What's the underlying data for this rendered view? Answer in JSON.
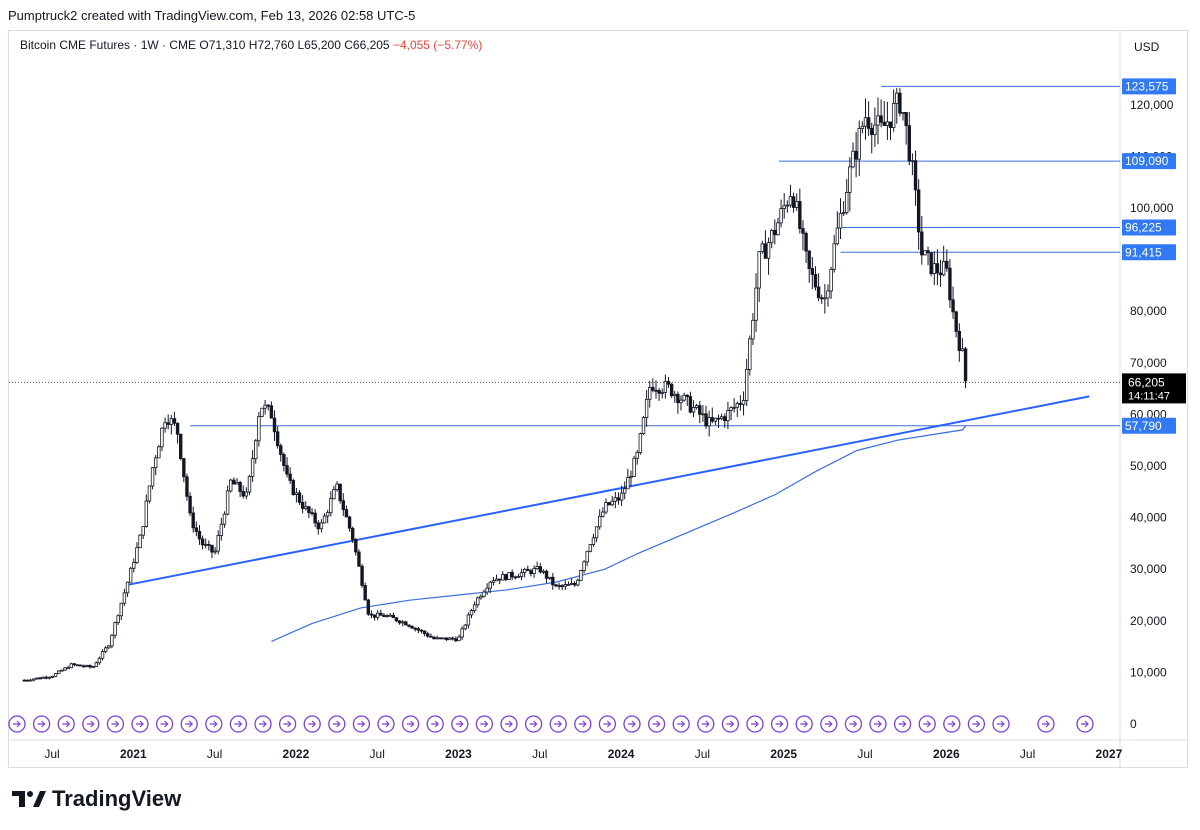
{
  "header": {
    "caption": "Pumptruck2 created with TradingView.com, Feb 13, 2026 02:58 UTC-5"
  },
  "legend": {
    "symbol": "Bitcoin CME Futures · 1W · CME",
    "open_label": "O",
    "open": "71,310",
    "high_label": "H",
    "high": "72,760",
    "low_label": "L",
    "low": "65,200",
    "close_label": "C",
    "close": "66,205",
    "change": "−4,055 (−5.77%)"
  },
  "axis": {
    "currency": "USD"
  },
  "footer": {
    "brand": "TradingView"
  },
  "colors": {
    "accent": "#2962ff",
    "level_label_bg": "#3179f5",
    "price_label_bg": "#000000",
    "candle": "#131722",
    "ma_line": "#3b6fe0"
  },
  "chart_data": {
    "type": "candlestick",
    "y_axis": {
      "ticks": [
        0,
        10000,
        20000,
        30000,
        40000,
        50000,
        60000,
        70000,
        80000,
        90000,
        100000,
        110000,
        120000
      ],
      "tick_labels": [
        "0",
        "10,000",
        "20,000",
        "30,000",
        "40,000",
        "50,000",
        "60,000",
        "70,000",
        "80,000",
        "",
        "100,000",
        "110,000",
        "120,000"
      ]
    },
    "x_axis": {
      "ticks": [
        {
          "label": "Jul",
          "x": 2020.5
        },
        {
          "label": "2021",
          "x": 2021.0
        },
        {
          "label": "Jul",
          "x": 2021.5
        },
        {
          "label": "2022",
          "x": 2022.0
        },
        {
          "label": "Jul",
          "x": 2022.5
        },
        {
          "label": "2023",
          "x": 2023.0
        },
        {
          "label": "Jul",
          "x": 2023.5
        },
        {
          "label": "2024",
          "x": 2024.0
        },
        {
          "label": "Jul",
          "x": 2024.5
        },
        {
          "label": "2025",
          "x": 2025.0
        },
        {
          "label": "Jul",
          "x": 2025.5
        },
        {
          "label": "2026",
          "x": 2026.0
        },
        {
          "label": "Jul",
          "x": 2026.5
        },
        {
          "label": "2027",
          "x": 2027.0
        }
      ]
    },
    "price_path": [
      [
        2020.33,
        8500
      ],
      [
        2020.5,
        9300
      ],
      [
        2020.62,
        11500
      ],
      [
        2020.75,
        11000
      ],
      [
        2020.85,
        15500
      ],
      [
        2020.96,
        27000
      ],
      [
        2021.05,
        37000
      ],
      [
        2021.12,
        50000
      ],
      [
        2021.2,
        60000
      ],
      [
        2021.27,
        57000
      ],
      [
        2021.35,
        40000
      ],
      [
        2021.42,
        35000
      ],
      [
        2021.5,
        33000
      ],
      [
        2021.6,
        47000
      ],
      [
        2021.7,
        44000
      ],
      [
        2021.78,
        62000
      ],
      [
        2021.85,
        60000
      ],
      [
        2021.95,
        47000
      ],
      [
        2022.05,
        42000
      ],
      [
        2022.15,
        38000
      ],
      [
        2022.25,
        46000
      ],
      [
        2022.35,
        36000
      ],
      [
        2022.45,
        21000
      ],
      [
        2022.55,
        21000
      ],
      [
        2022.68,
        19500
      ],
      [
        2022.85,
        16500
      ],
      [
        2023.0,
        16500
      ],
      [
        2023.1,
        23500
      ],
      [
        2023.2,
        28000
      ],
      [
        2023.35,
        29000
      ],
      [
        2023.5,
        30000
      ],
      [
        2023.6,
        26500
      ],
      [
        2023.72,
        27000
      ],
      [
        2023.8,
        34500
      ],
      [
        2023.9,
        42000
      ],
      [
        2024.0,
        44000
      ],
      [
        2024.1,
        52000
      ],
      [
        2024.18,
        66000
      ],
      [
        2024.3,
        65000
      ],
      [
        2024.45,
        61000
      ],
      [
        2024.55,
        58000
      ],
      [
        2024.65,
        60000
      ],
      [
        2024.75,
        63000
      ],
      [
        2024.85,
        90000
      ],
      [
        2024.95,
        96000
      ],
      [
        2025.05,
        104000
      ],
      [
        2025.15,
        88000
      ],
      [
        2025.25,
        82000
      ],
      [
        2025.32,
        94000
      ],
      [
        2025.4,
        106000
      ],
      [
        2025.5,
        118000
      ],
      [
        2025.6,
        115000
      ],
      [
        2025.72,
        121000
      ],
      [
        2025.78,
        110000
      ],
      [
        2025.85,
        91000
      ],
      [
        2025.93,
        88000
      ],
      [
        2026.0,
        88000
      ],
      [
        2026.05,
        78000
      ],
      [
        2026.1,
        71310
      ],
      [
        2026.12,
        66205
      ]
    ],
    "moving_average": [
      [
        2021.85,
        16000
      ],
      [
        2022.1,
        19500
      ],
      [
        2022.4,
        22500
      ],
      [
        2022.7,
        24000
      ],
      [
        2023.0,
        25000
      ],
      [
        2023.3,
        26000
      ],
      [
        2023.6,
        27500
      ],
      [
        2023.9,
        30000
      ],
      [
        2024.1,
        33000
      ],
      [
        2024.4,
        37000
      ],
      [
        2024.7,
        41000
      ],
      [
        2024.95,
        44500
      ],
      [
        2025.2,
        49000
      ],
      [
        2025.45,
        53000
      ],
      [
        2025.7,
        55000
      ],
      [
        2025.9,
        56000
      ],
      [
        2026.1,
        57000
      ],
      [
        2026.12,
        57800
      ]
    ],
    "trendline": [
      [
        2020.97,
        27000
      ],
      [
        2026.88,
        63500
      ]
    ],
    "horizontal_levels": [
      {
        "value": 123575,
        "label": "123,575",
        "from_x": 2025.6
      },
      {
        "value": 109090,
        "label": "109,090",
        "from_x": 2024.97
      },
      {
        "value": 96225,
        "label": "96,225",
        "from_x": 2025.35
      },
      {
        "value": 91415,
        "label": "91,415",
        "from_x": 2025.35
      },
      {
        "value": 57790,
        "label": "57,790",
        "from_x": 2021.35
      }
    ],
    "last_price": {
      "value": 66205,
      "label": "66,205",
      "countdown": "14:11:47"
    }
  }
}
